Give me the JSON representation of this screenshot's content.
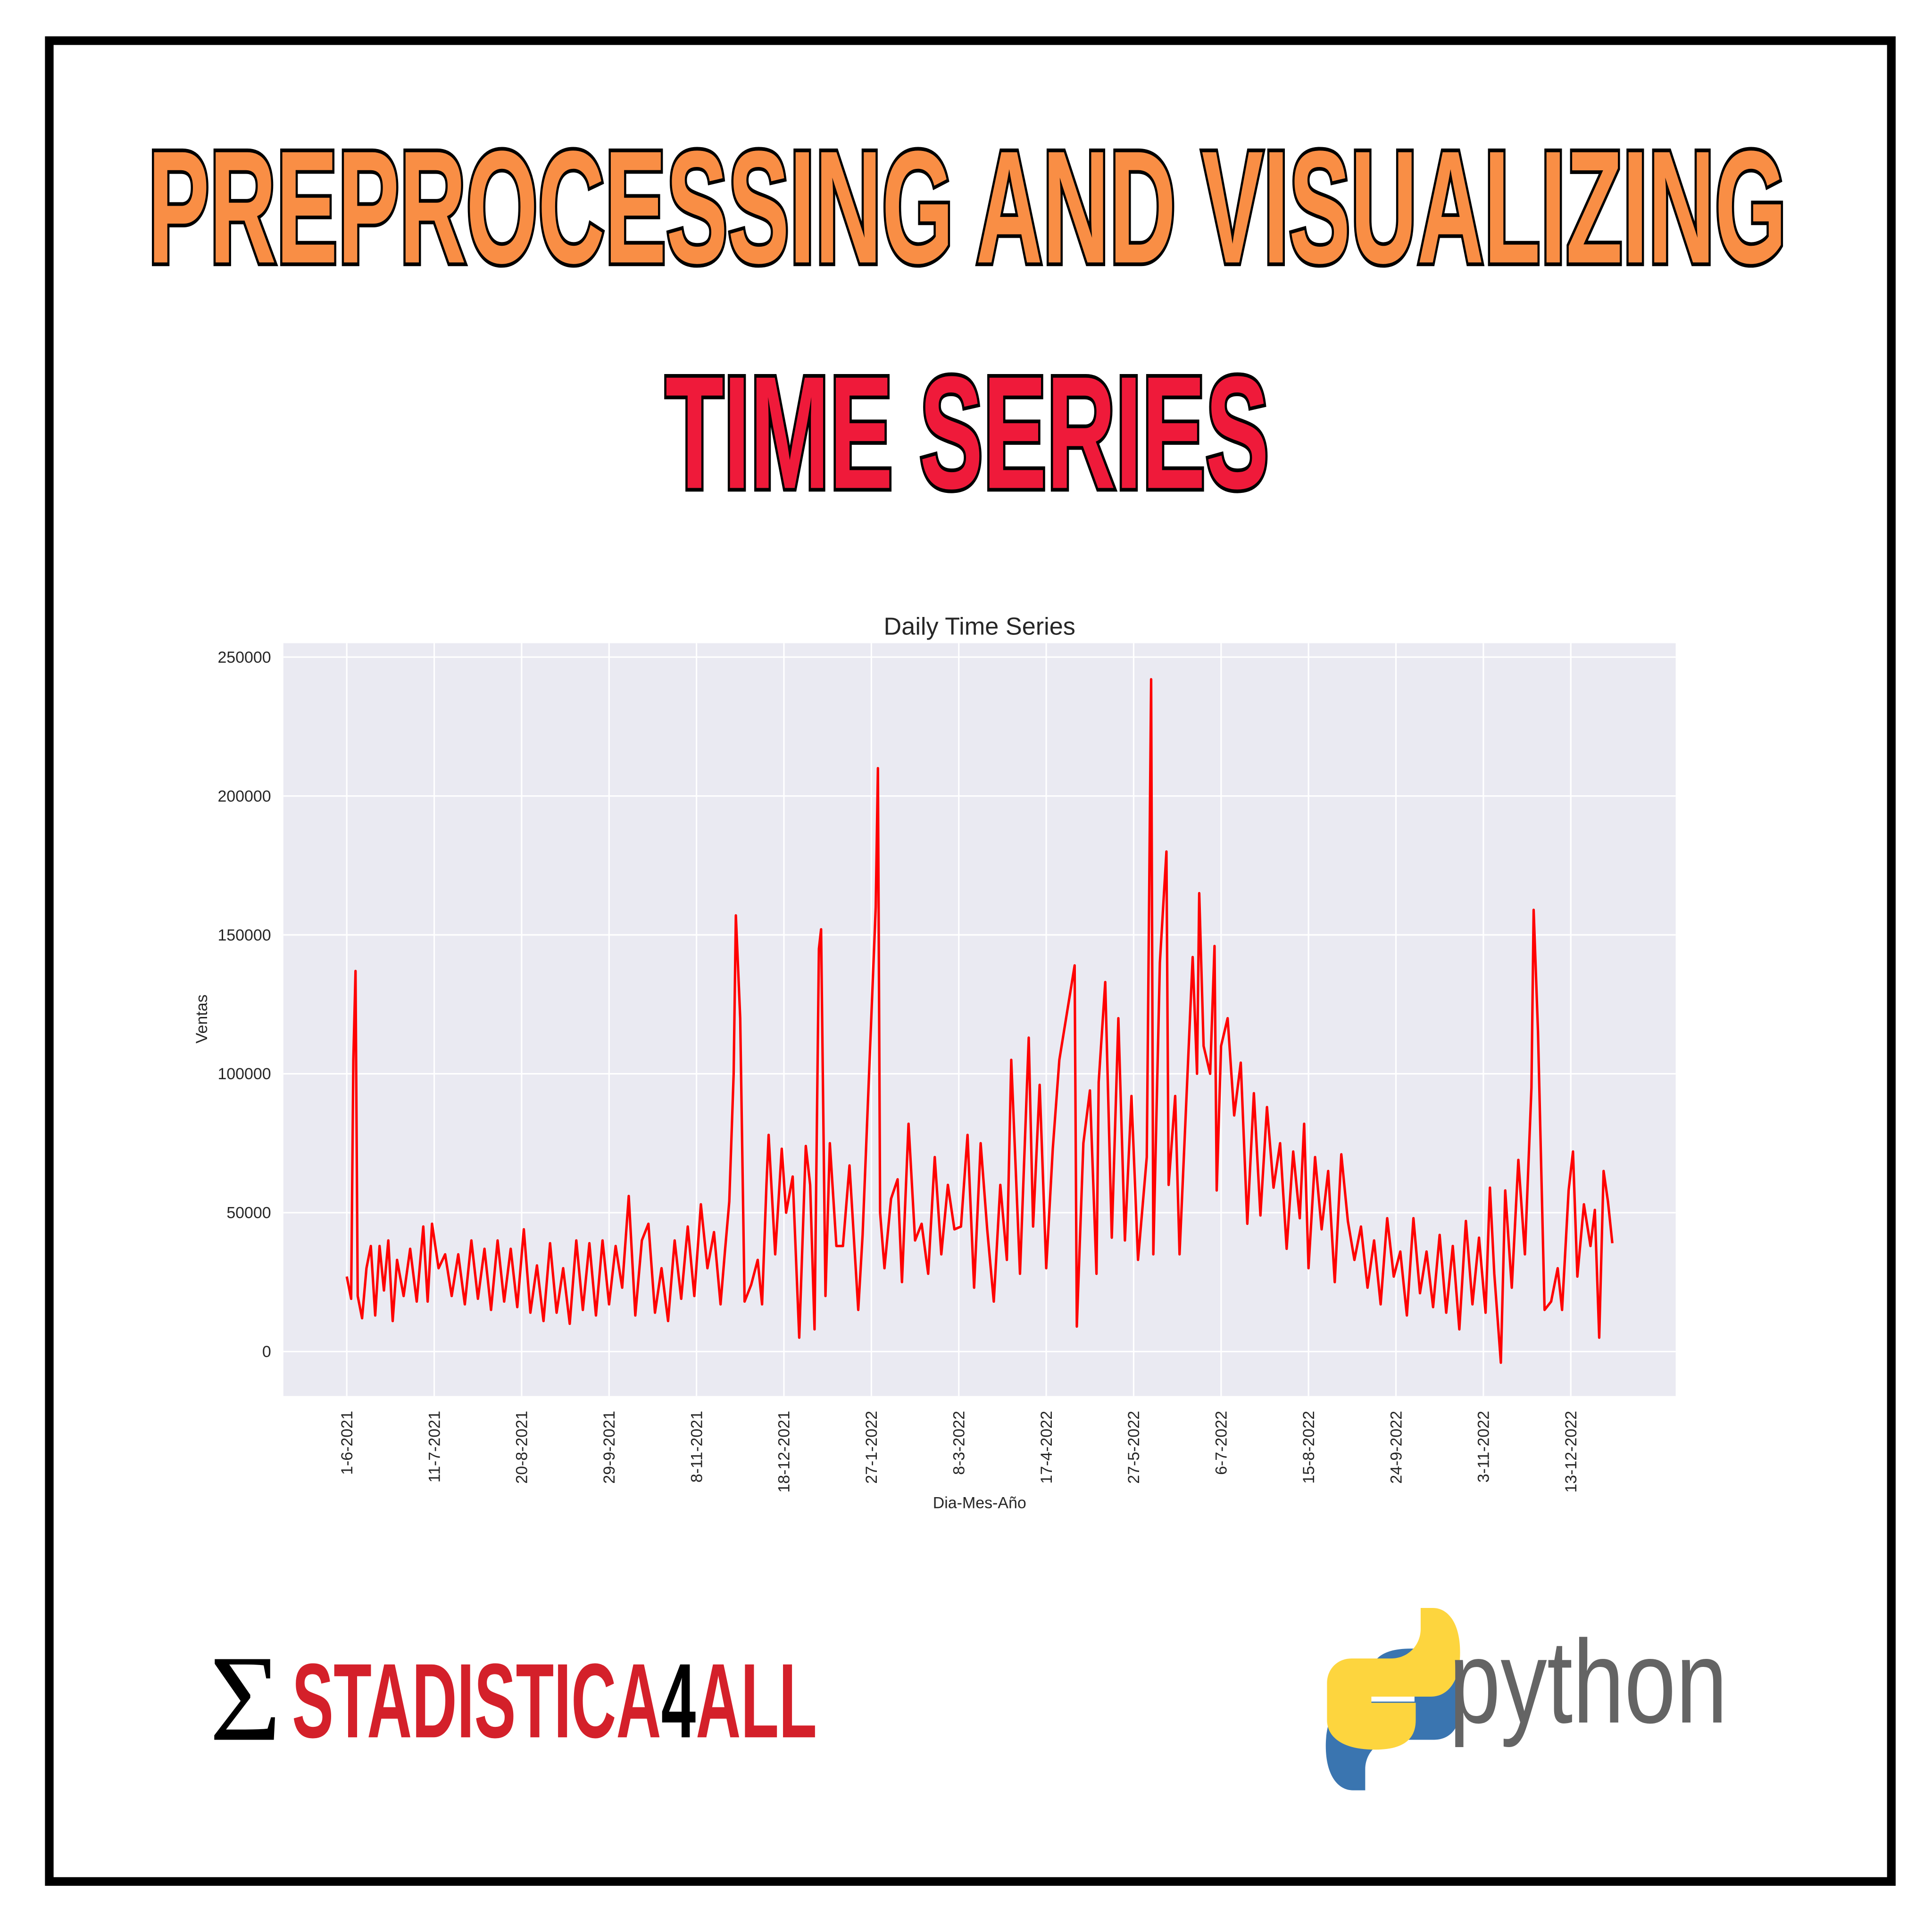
{
  "header": {
    "title_line1": "PREPROCESSING AND VISUALIZING",
    "title_line2": "TIME SERIES"
  },
  "chart_data": {
    "type": "line",
    "title": "Daily Time Series",
    "x_label": "Dia-Mes-Año",
    "y_label": "Ventas",
    "color": "#ff0000",
    "grid": true,
    "xlim": [
      "3-5-2021",
      "30-1-2023"
    ],
    "xticks": [
      "1-6-2021",
      "11-7-2021",
      "20-8-2021",
      "29-9-2021",
      "8-11-2021",
      "18-12-2021",
      "27-1-2022",
      "8-3-2022",
      "17-4-2022",
      "27-5-2022",
      "6-7-2022",
      "15-8-2022",
      "24-9-2022",
      "3-11-2022",
      "13-12-2022"
    ],
    "ylim": [
      -16000,
      255000
    ],
    "yticks": [
      0,
      50000,
      100000,
      150000,
      200000,
      250000
    ],
    "x": [
      "1-6-2021",
      "3-6-2021",
      "4-6-2021",
      "5-6-2021",
      "6-6-2021",
      "8-6-2021",
      "10-6-2021",
      "12-6-2021",
      "14-6-2021",
      "16-6-2021",
      "18-6-2021",
      "20-6-2021",
      "22-6-2021",
      "24-6-2021",
      "27-6-2021",
      "30-6-2021",
      "3-7-2021",
      "6-7-2021",
      "8-7-2021",
      "10-7-2021",
      "13-7-2021",
      "16-7-2021",
      "19-7-2021",
      "22-7-2021",
      "25-7-2021",
      "28-7-2021",
      "31-7-2021",
      "3-8-2021",
      "6-8-2021",
      "9-8-2021",
      "12-8-2021",
      "15-8-2021",
      "18-8-2021",
      "21-8-2021",
      "24-8-2021",
      "27-8-2021",
      "30-8-2021",
      "2-9-2021",
      "5-9-2021",
      "8-9-2021",
      "11-9-2021",
      "14-9-2021",
      "17-9-2021",
      "20-9-2021",
      "23-9-2021",
      "26-9-2021",
      "29-9-2021",
      "2-10-2021",
      "5-10-2021",
      "8-10-2021",
      "11-10-2021",
      "14-10-2021",
      "17-10-2021",
      "20-10-2021",
      "23-10-2021",
      "26-10-2021",
      "29-10-2021",
      "1-11-2021",
      "4-11-2021",
      "7-11-2021",
      "10-11-2021",
      "13-11-2021",
      "16-11-2021",
      "19-11-2021",
      "21-11-2021",
      "23-11-2021",
      "25-11-2021",
      "26-11-2021",
      "28-11-2021",
      "30-11-2021",
      "3-12-2021",
      "6-12-2021",
      "8-12-2021",
      "10-12-2021",
      "11-12-2021",
      "14-12-2021",
      "17-12-2021",
      "19-12-2021",
      "22-12-2021",
      "25-12-2021",
      "28-12-2021",
      "30-12-2021",
      "1-1-2022",
      "3-1-2022",
      "4-1-2022",
      "6-1-2022",
      "8-1-2022",
      "11-1-2022",
      "14-1-2022",
      "17-1-2022",
      "21-1-2022",
      "23-1-2022",
      "29-1-2022",
      "30-1-2022",
      "31-1-2022",
      "2-2-2022",
      "5-2-2022",
      "8-2-2022",
      "10-2-2022",
      "13-2-2022",
      "16-2-2022",
      "19-2-2022",
      "22-2-2022",
      "25-2-2022",
      "28-2-2022",
      "3-3-2022",
      "6-3-2022",
      "9-3-2022",
      "12-3-2022",
      "15-3-2022",
      "18-3-2022",
      "21-3-2022",
      "24-3-2022",
      "27-3-2022",
      "30-3-2022",
      "1-4-2022",
      "5-4-2022",
      "9-4-2022",
      "11-4-2022",
      "14-4-2022",
      "17-4-2022",
      "20-4-2022",
      "23-4-2022",
      "30-4-2022",
      "1-5-2022",
      "4-5-2022",
      "7-5-2022",
      "10-5-2022",
      "11-5-2022",
      "14-5-2022",
      "17-5-2022",
      "20-5-2022",
      "23-5-2022",
      "26-5-2022",
      "29-5-2022",
      "2-6-2022",
      "4-6-2022",
      "5-6-2022",
      "8-6-2022",
      "11-6-2022",
      "12-6-2022",
      "15-6-2022",
      "17-6-2022",
      "23-6-2022",
      "25-6-2022",
      "26-6-2022",
      "28-6-2022",
      "1-7-2022",
      "3-7-2022",
      "4-7-2022",
      "6-7-2022",
      "9-7-2022",
      "12-7-2022",
      "15-7-2022",
      "18-7-2022",
      "21-7-2022",
      "24-7-2022",
      "27-7-2022",
      "30-7-2022",
      "2-8-2022",
      "5-8-2022",
      "8-8-2022",
      "11-8-2022",
      "13-8-2022",
      "15-8-2022",
      "18-8-2022",
      "21-8-2022",
      "24-8-2022",
      "27-8-2022",
      "30-8-2022",
      "2-9-2022",
      "5-9-2022",
      "8-9-2022",
      "11-9-2022",
      "14-9-2022",
      "17-9-2022",
      "20-9-2022",
      "23-9-2022",
      "26-9-2022",
      "29-9-2022",
      "2-10-2022",
      "5-10-2022",
      "8-10-2022",
      "11-10-2022",
      "14-10-2022",
      "17-10-2022",
      "20-10-2022",
      "23-10-2022",
      "26-10-2022",
      "29-10-2022",
      "1-11-2022",
      "4-11-2022",
      "6-11-2022",
      "8-11-2022",
      "11-11-2022",
      "13-11-2022",
      "16-11-2022",
      "19-11-2022",
      "22-11-2022",
      "25-11-2022",
      "26-11-2022",
      "28-11-2022",
      "1-12-2022",
      "4-12-2022",
      "7-12-2022",
      "9-12-2022",
      "12-12-2022",
      "14-12-2022",
      "16-12-2022",
      "19-12-2022",
      "22-12-2022",
      "24-12-2022",
      "26-12-2022",
      "28-12-2022",
      "30-12-2022",
      "1-1-2023"
    ],
    "values": [
      27000,
      19000,
      105000,
      137000,
      20000,
      12000,
      30000,
      38000,
      13000,
      38000,
      22000,
      40000,
      11000,
      33000,
      20000,
      37000,
      18000,
      45000,
      18000,
      46000,
      30000,
      35000,
      20000,
      35000,
      17000,
      40000,
      19000,
      37000,
      15000,
      40000,
      18000,
      37000,
      16000,
      44000,
      14000,
      31000,
      11000,
      39000,
      14000,
      30000,
      10000,
      40000,
      15000,
      39000,
      13000,
      40000,
      17000,
      38000,
      23000,
      56000,
      13000,
      40000,
      46000,
      14000,
      30000,
      11000,
      40000,
      19000,
      45000,
      20000,
      53000,
      30000,
      43000,
      17000,
      36000,
      54000,
      100000,
      157000,
      120000,
      18000,
      24000,
      33000,
      17000,
      60000,
      78000,
      35000,
      73000,
      50000,
      63000,
      5000,
      74000,
      60000,
      8000,
      145000,
      152000,
      20000,
      75000,
      38000,
      38000,
      67000,
      15000,
      42000,
      160000,
      210000,
      50000,
      30000,
      55000,
      62000,
      25000,
      82000,
      40000,
      46000,
      28000,
      70000,
      35000,
      60000,
      44000,
      45000,
      78000,
      23000,
      75000,
      44000,
      18000,
      60000,
      33000,
      105000,
      28000,
      113000,
      45000,
      96000,
      30000,
      73000,
      105000,
      139000,
      9000,
      75000,
      94000,
      28000,
      97000,
      133000,
      41000,
      120000,
      40000,
      92000,
      33000,
      70000,
      242000,
      35000,
      140000,
      180000,
      60000,
      92000,
      35000,
      142000,
      100000,
      165000,
      110000,
      100000,
      146000,
      58000,
      110000,
      120000,
      85000,
      104000,
      46000,
      93000,
      49000,
      88000,
      59000,
      75000,
      37000,
      72000,
      48000,
      82000,
      30000,
      70000,
      44000,
      65000,
      25000,
      71000,
      47000,
      33000,
      45000,
      23000,
      40000,
      17000,
      48000,
      27000,
      36000,
      13000,
      48000,
      21000,
      36000,
      16000,
      42000,
      14000,
      38000,
      8000,
      47000,
      17000,
      41000,
      14000,
      59000,
      28000,
      -4000,
      58000,
      23000,
      69000,
      35000,
      95000,
      159000,
      115000,
      15000,
      18000,
      30000,
      15000,
      58000,
      72000,
      27000,
      53000,
      38000,
      51000,
      5000,
      65000,
      54000,
      39000
    ]
  },
  "footer": {
    "brand_symbol": "Σ",
    "brand_part1": "STADISTICA",
    "brand_digit": "4",
    "brand_part2": "ALL",
    "python_text": "python"
  }
}
